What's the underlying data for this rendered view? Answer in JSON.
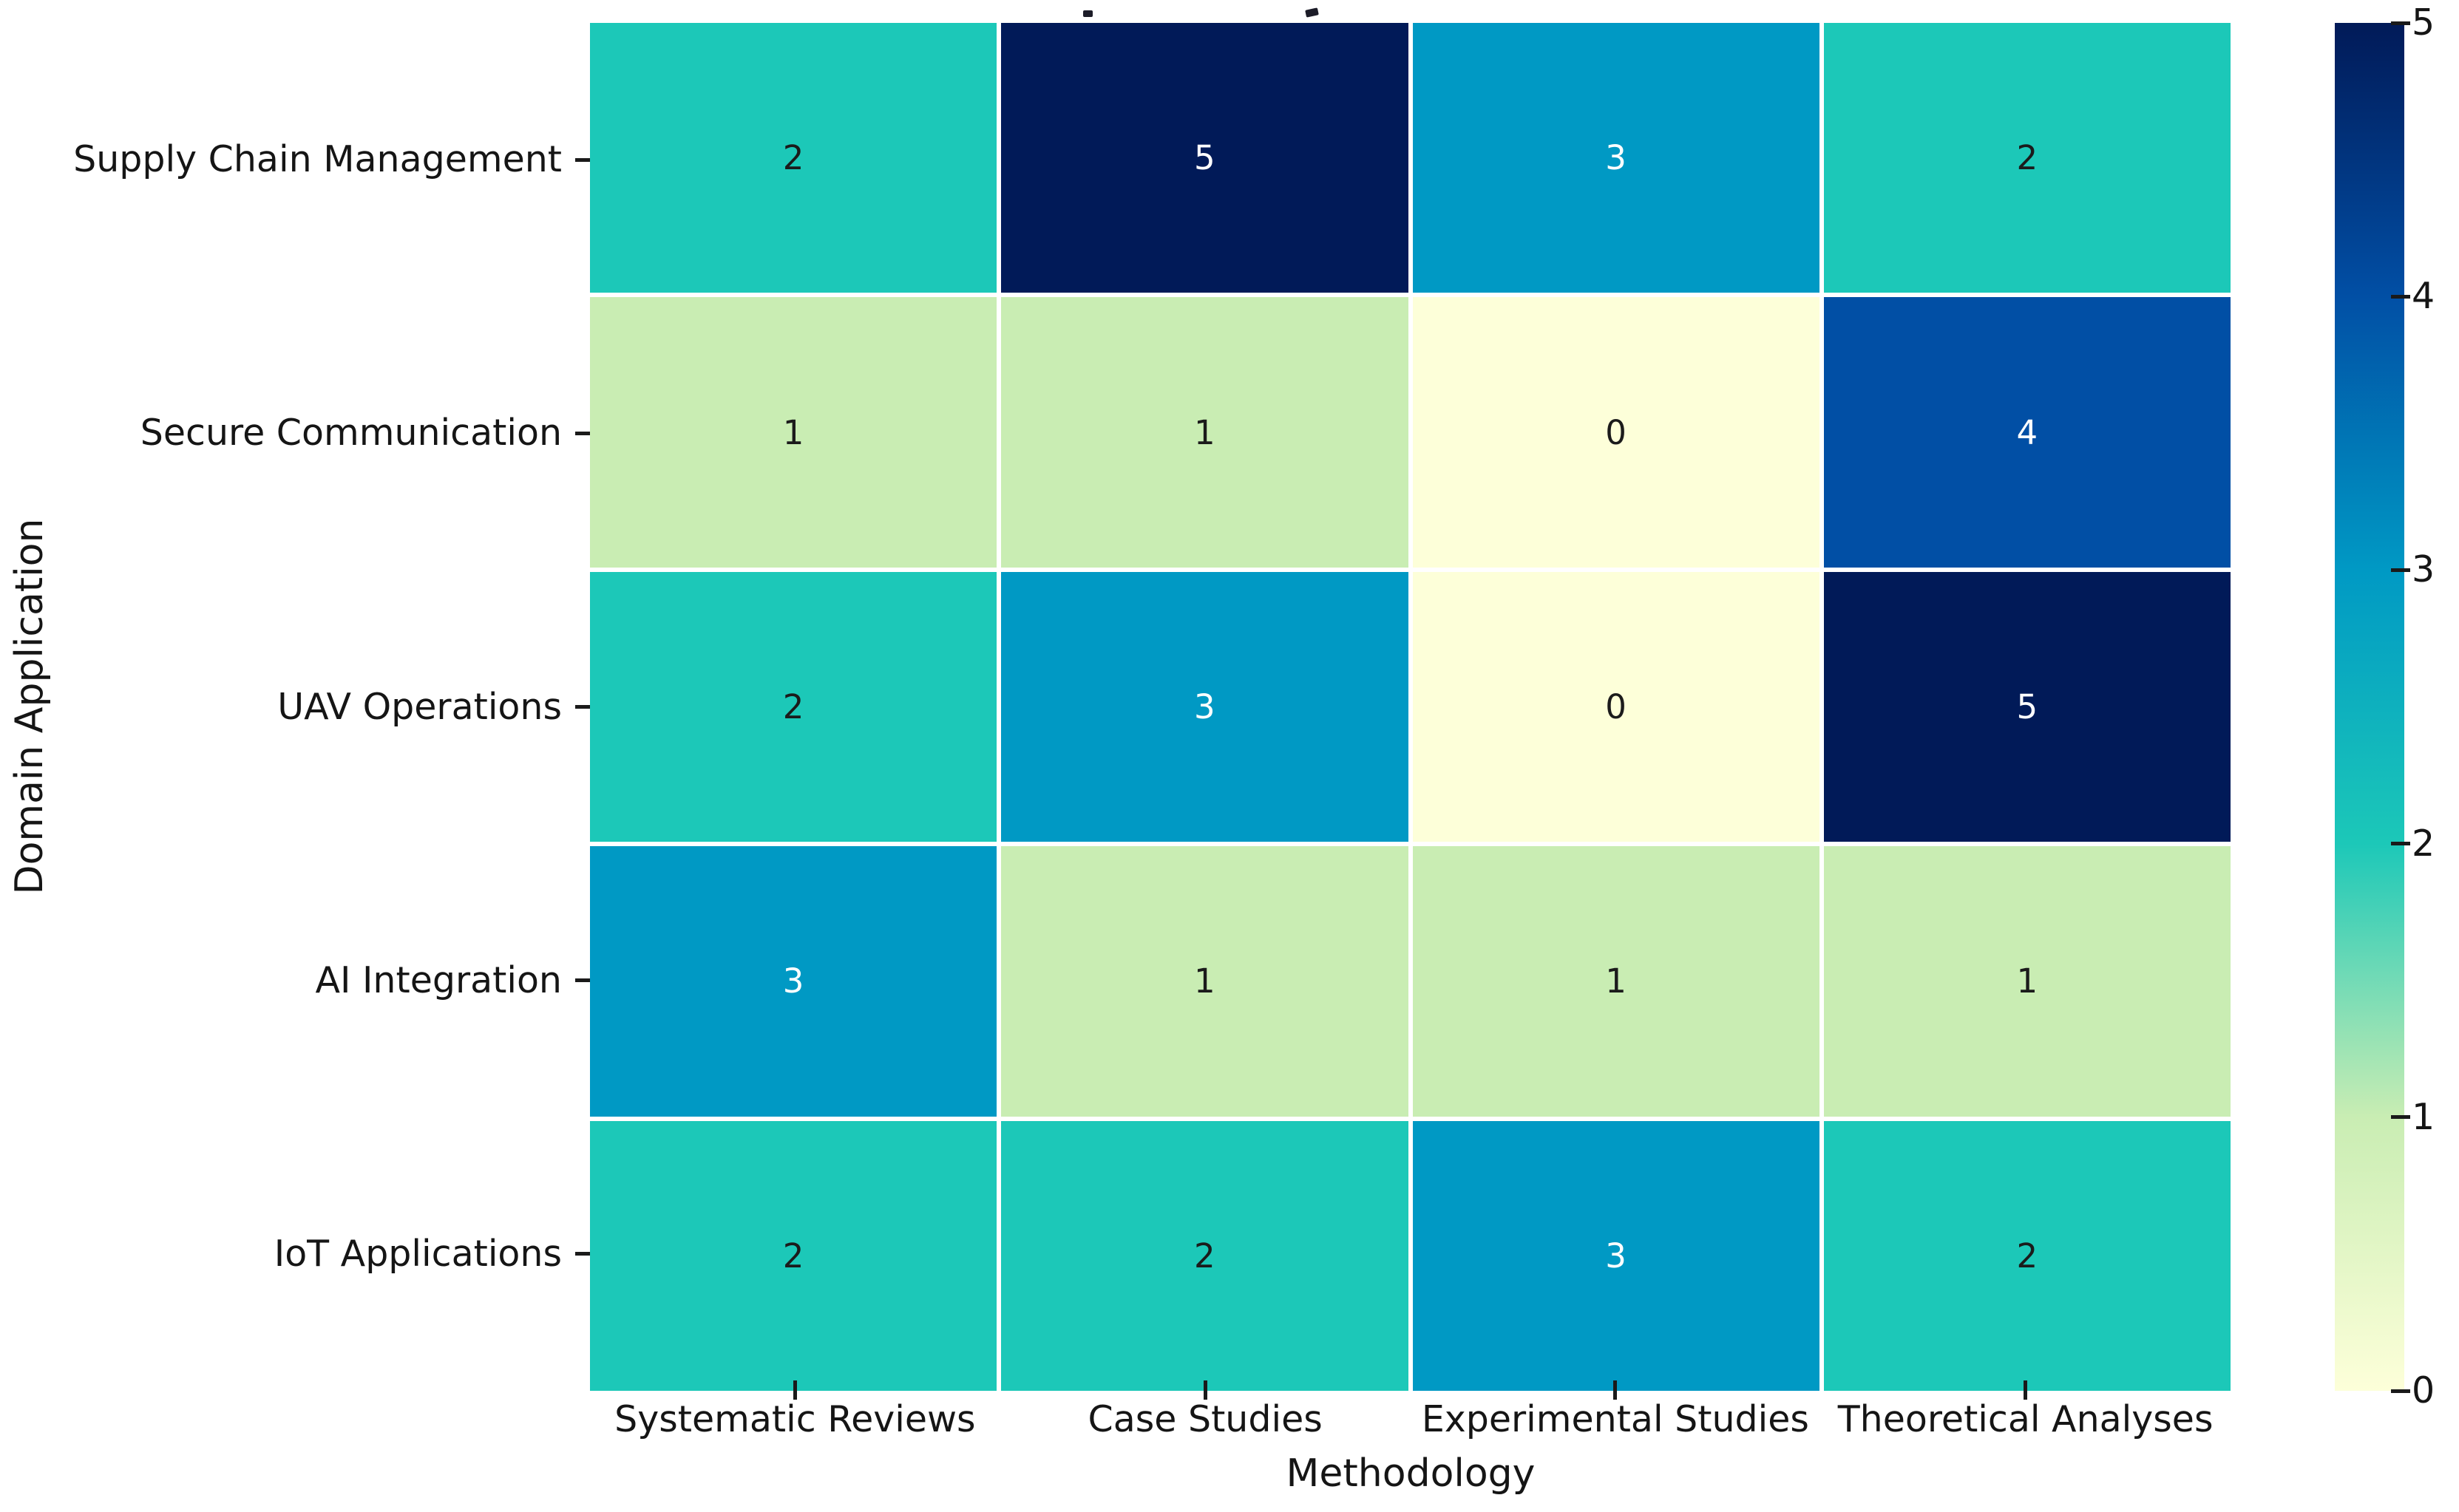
{
  "chart_data": {
    "type": "heatmap",
    "rows": [
      "Supply Chain Management",
      "Secure Communication",
      "UAV Operations",
      "AI Integration",
      "IoT Applications"
    ],
    "columns": [
      "Systematic Reviews",
      "Case Studies",
      "Experimental Studies",
      "Theoretical Analyses"
    ],
    "values": [
      [
        2,
        5,
        3,
        2
      ],
      [
        1,
        1,
        0,
        4
      ],
      [
        2,
        3,
        0,
        5
      ],
      [
        3,
        1,
        1,
        1
      ],
      [
        2,
        2,
        3,
        2
      ]
    ],
    "xlabel": "Methodology",
    "ylabel": "Domain Application",
    "vmin": 0,
    "vmax": 5,
    "colorbar_ticks": [
      0,
      1,
      2,
      3,
      4,
      5
    ],
    "colorbar_position": "right",
    "value_colors": {
      "0": "#fdffd9",
      "1": "#c9edb3",
      "2": "#1cc8b8",
      "3": "#0099c4",
      "4": "#014fa5",
      "5": "#011a58"
    },
    "annot_text_dark": "#1b1b1b",
    "annot_text_light": "#ffffff",
    "light_text_threshold": 3,
    "grid_line_color": "#ffffff"
  }
}
